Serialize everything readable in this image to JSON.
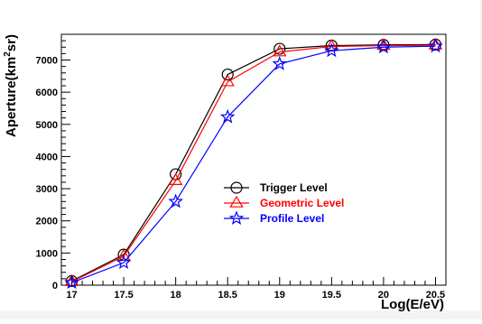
{
  "chart_data": {
    "type": "line",
    "title": "",
    "xlabel": "Log(E/eV)",
    "ylabel_main": "Aperture(km",
    "ylabel_sup": "2",
    "ylabel_tail": "sr)",
    "xlim": [
      16.9,
      20.6
    ],
    "ylim": [
      0,
      7800
    ],
    "x_ticks": [
      17,
      17.5,
      18,
      18.5,
      19,
      19.5,
      20,
      20.5
    ],
    "x_tick_labels": [
      "17",
      "17.5",
      "18",
      "18.5",
      "19",
      "19.5",
      "20",
      "20.5"
    ],
    "y_ticks": [
      0,
      1000,
      2000,
      3000,
      4000,
      5000,
      6000,
      7000
    ],
    "y_tick_labels": [
      "0",
      "1000",
      "2000",
      "3000",
      "4000",
      "5000",
      "6000",
      "7000"
    ],
    "grid": false,
    "legend_position": "center-right",
    "x": [
      17,
      17.5,
      18,
      18.5,
      19,
      19.5,
      20,
      20.5
    ],
    "series": [
      {
        "name": "Trigger Level",
        "marker": "circle",
        "color": "#000000",
        "values": [
          130,
          950,
          3450,
          6550,
          7350,
          7450,
          7470,
          7480
        ]
      },
      {
        "name": "Geometric Level",
        "marker": "triangle",
        "color": "#ff0000",
        "values": [
          110,
          900,
          3250,
          6320,
          7250,
          7420,
          7450,
          7460
        ]
      },
      {
        "name": "Profile Level",
        "marker": "star",
        "color": "#0000ff",
        "values": [
          80,
          700,
          2600,
          5230,
          6880,
          7290,
          7400,
          7430
        ]
      }
    ]
  }
}
